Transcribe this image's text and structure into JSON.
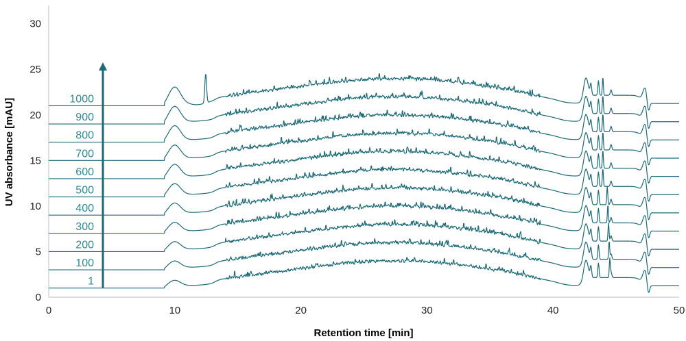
{
  "chart_data": {
    "type": "line",
    "title": "",
    "xlabel": "Retention time [min]",
    "ylabel": "UV absorbance [mAU]",
    "xlim": [
      0,
      50
    ],
    "ylim": [
      0,
      32
    ],
    "x_ticks": [
      0,
      10,
      20,
      30,
      40,
      50
    ],
    "y_ticks": [
      0,
      5,
      10,
      15,
      20,
      25,
      30
    ],
    "grid": false,
    "arrow_direction": "up",
    "series": [
      {
        "name": "1",
        "baseline": 1.0
      },
      {
        "name": "100",
        "baseline": 3.0
      },
      {
        "name": "200",
        "baseline": 5.0
      },
      {
        "name": "300",
        "baseline": 7.0
      },
      {
        "name": "400",
        "baseline": 9.0
      },
      {
        "name": "500",
        "baseline": 11.0
      },
      {
        "name": "600",
        "baseline": 13.0
      },
      {
        "name": "700",
        "baseline": 15.0
      },
      {
        "name": "800",
        "baseline": 17.0
      },
      {
        "name": "900",
        "baseline": 19.0
      },
      {
        "name": "1000",
        "baseline": 21.0
      }
    ],
    "line_color": "#1b6a78",
    "label_color": "#2e8a97",
    "axis_color": "#bfbfbf"
  }
}
